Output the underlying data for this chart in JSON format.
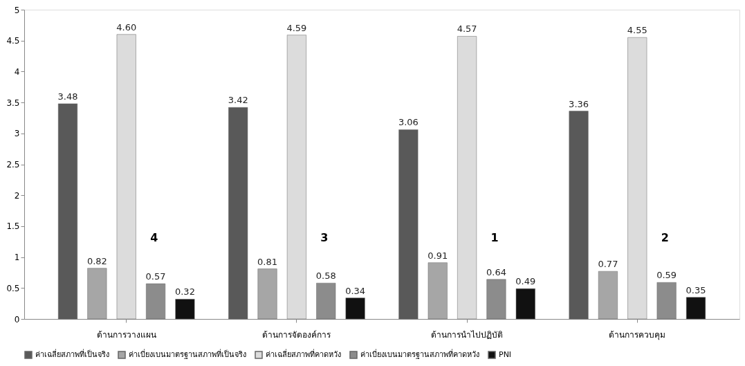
{
  "chart_data": {
    "type": "bar",
    "categories": [
      "ด้านการวางแผน",
      "ด้านการจัดองค์การ",
      "ด้านการนำไปปฏิบัติ",
      "ด้านการควบคุม"
    ],
    "series": [
      {
        "name": "ค่าเฉลี่ยสภาพที่เป็นจริง",
        "color": "#595959",
        "values": [
          3.48,
          3.42,
          3.06,
          3.36
        ],
        "value_labels": [
          "3.48",
          "3.42",
          "3.06",
          "3.36"
        ]
      },
      {
        "name": "ค่าเบี่ยงเบนมาตรฐานสภาพที่เป็นจริง",
        "color": "#a6a6a6",
        "values": [
          0.82,
          0.81,
          0.91,
          0.77
        ],
        "value_labels": [
          "0.82",
          "0.81",
          "0.91",
          "0.77"
        ]
      },
      {
        "name": "ค่าเฉลี่ยสภาพที่คาดหวัง",
        "color": "#dcdcdc",
        "values": [
          4.6,
          4.59,
          4.57,
          4.55
        ],
        "value_labels": [
          "4.60",
          "4.59",
          "4.57",
          "4.55"
        ]
      },
      {
        "name": "ค่าเบี่ยงเบนมาตรฐานสภาพที่คาดหวัง",
        "color": "#8c8c8c",
        "values": [
          0.57,
          0.58,
          0.64,
          0.59
        ],
        "value_labels": [
          "0.57",
          "0.58",
          "0.64",
          "0.59"
        ]
      },
      {
        "name": "PNI",
        "color": "#111111",
        "values": [
          0.32,
          0.34,
          0.49,
          0.35
        ],
        "value_labels": [
          "0.32",
          "0.34",
          "0.49",
          "0.35"
        ]
      }
    ],
    "ylim": [
      0,
      5
    ],
    "yticks": [
      0,
      0.5,
      1,
      1.5,
      2,
      2.5,
      3,
      3.5,
      4,
      4.5,
      5
    ],
    "grid": false,
    "legend": "bottom",
    "annotations": [
      "4",
      "3",
      "1",
      "2"
    ]
  }
}
